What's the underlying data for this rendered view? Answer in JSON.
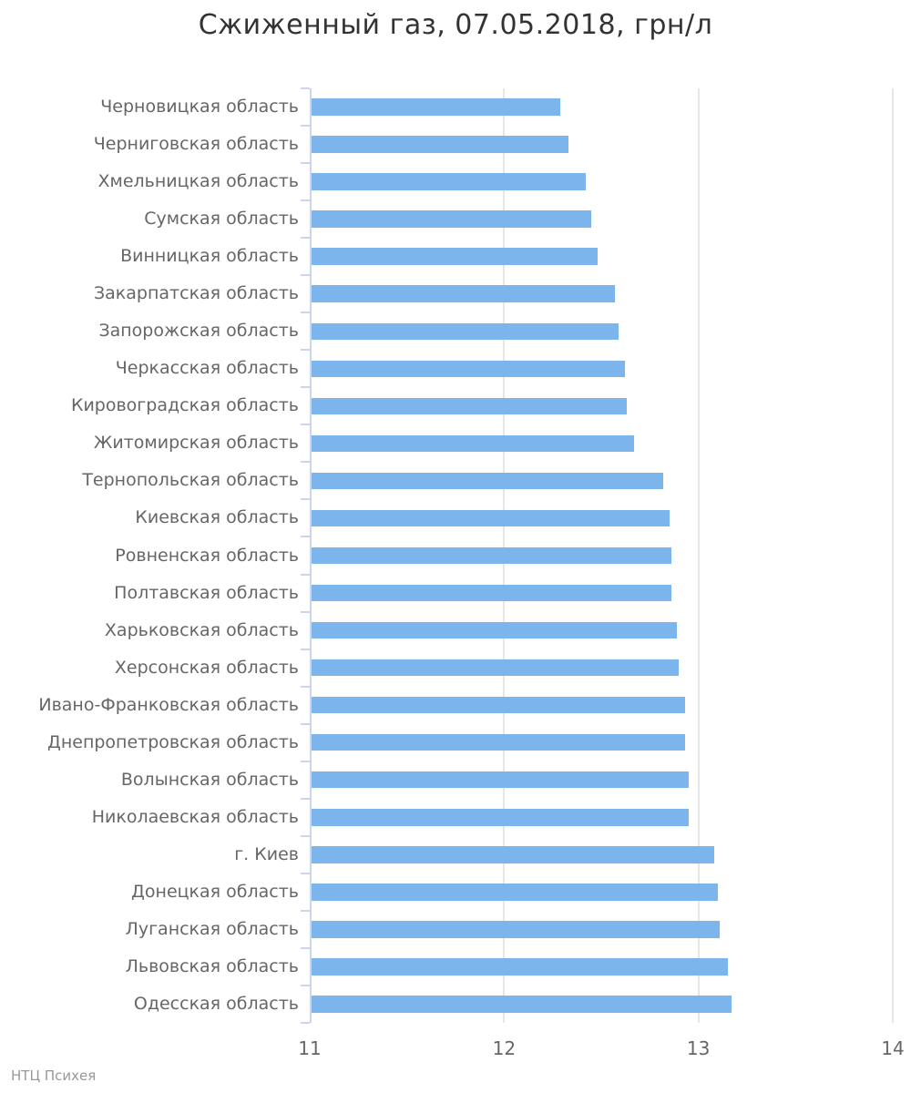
{
  "title": "Сжиженный газ, 07.05.2018, грн/л",
  "credits": {
    "text": "НТЦ Психея"
  },
  "colors": {
    "bar": "#7cb5ec",
    "axis_line": "#ccd6eb",
    "grid_line": "#e6e6e6",
    "title_text": "#333333",
    "label_text": "#666666",
    "credits_text": "#999999"
  },
  "chart_data": {
    "type": "bar",
    "title": "Сжиженный газ, 07.05.2018, грн/л",
    "xlabel": "",
    "ylabel": "",
    "legend": false,
    "grid": true,
    "value_axis": {
      "min": 11,
      "max": 14,
      "tick_values": [
        11,
        12,
        13,
        14
      ],
      "tick_labels": [
        "11",
        "12",
        "13",
        "14"
      ]
    },
    "categories": [
      "Черновицкая область",
      "Черниговская область",
      "Хмельницкая область",
      "Сумская область",
      "Винницкая область",
      "Закарпатская область",
      "Запорожская область",
      "Черкасская область",
      "Кировоградская область",
      "Житомирская область",
      "Тернопольская область",
      "Киевская область",
      "Ровненская область",
      "Полтавская область",
      "Харьковская область",
      "Херсонская область",
      "Ивано-Франковская область",
      "Днепропетровская область",
      "Волынская область",
      "Николаевская область",
      "г. Киев",
      "Донецкая область",
      "Луганская область",
      "Львовская область",
      "Одесская область"
    ],
    "values": [
      12.29,
      12.33,
      12.42,
      12.45,
      12.48,
      12.57,
      12.59,
      12.62,
      12.63,
      12.67,
      12.82,
      12.85,
      12.86,
      12.86,
      12.89,
      12.9,
      12.93,
      12.93,
      12.95,
      12.95,
      13.08,
      13.1,
      13.11,
      13.15,
      13.17
    ]
  }
}
